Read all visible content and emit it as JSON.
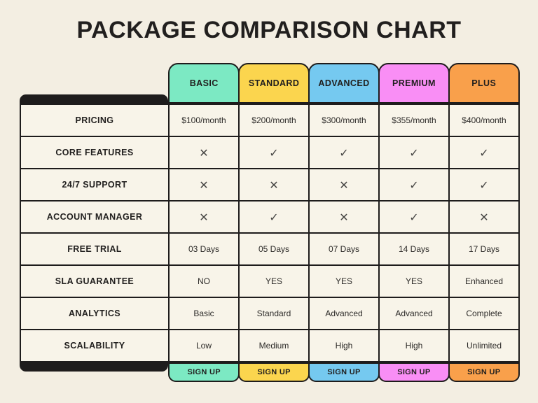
{
  "title": "PACKAGE COMPARISON CHART",
  "theme": {
    "background": "#f3eee2",
    "cell_background": "#f8f4e9",
    "line_black": "#1e1c1c"
  },
  "columns": [
    {
      "label": "BASIC",
      "color": "#7ce9c3"
    },
    {
      "label": "STANDARD",
      "color": "#fbd54e"
    },
    {
      "label": "ADVANCED",
      "color": "#75c9f0"
    },
    {
      "label": "PREMIUM",
      "color": "#f98ef5"
    },
    {
      "label": "PLUS",
      "color": "#f9a04b"
    }
  ],
  "rows": [
    {
      "label": "PRICING",
      "values": [
        "$100/month",
        "$200/month",
        "$300/month",
        "$355/month",
        "$400/month"
      ]
    },
    {
      "label": "CORE FEATURES",
      "values": [
        "✕",
        "✓",
        "✓",
        "✓",
        "✓"
      ]
    },
    {
      "label": "24/7 SUPPORT",
      "values": [
        "✕",
        "✕",
        "✕",
        "✓",
        "✓"
      ]
    },
    {
      "label": "ACCOUNT MANAGER",
      "values": [
        "✕",
        "✓",
        "✕",
        "✓",
        "✕"
      ]
    },
    {
      "label": "FREE TRIAL",
      "values": [
        "03 Days",
        "05 Days",
        "07 Days",
        "14 Days",
        "17 Days"
      ]
    },
    {
      "label": "SLA GUARANTEE",
      "values": [
        "NO",
        "YES",
        "YES",
        "YES",
        "Enhanced"
      ]
    },
    {
      "label": "ANALYTICS",
      "values": [
        "Basic",
        "Standard",
        "Advanced",
        "Advanced",
        "Complete"
      ]
    },
    {
      "label": "SCALABILITY",
      "values": [
        "Low",
        "Medium",
        "High",
        "High",
        "Unlimited"
      ]
    }
  ],
  "signup_label": "SIGN UP"
}
